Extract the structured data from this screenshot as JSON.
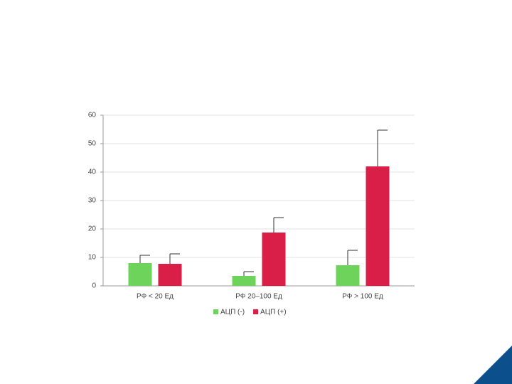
{
  "chart_data": {
    "type": "bar",
    "categories": [
      "РФ < 20 Ед",
      "РФ 20–100 Ед",
      "РФ > 100 Ед"
    ],
    "series": [
      {
        "name": "АЦП (-)",
        "color": "#6dd35a",
        "values": [
          8,
          3.5,
          7.25
        ],
        "errors": [
          2.75,
          1.5,
          5.25
        ]
      },
      {
        "name": "АЦП (+)",
        "color": "#d91f47",
        "values": [
          7.75,
          18.75,
          42
        ],
        "errors": [
          3.5,
          5.25,
          12.75
        ]
      }
    ],
    "ylim": [
      0,
      60
    ],
    "yticks": [
      0,
      10,
      20,
      30,
      40,
      50,
      60
    ],
    "grid": true,
    "legend": "bottom"
  }
}
